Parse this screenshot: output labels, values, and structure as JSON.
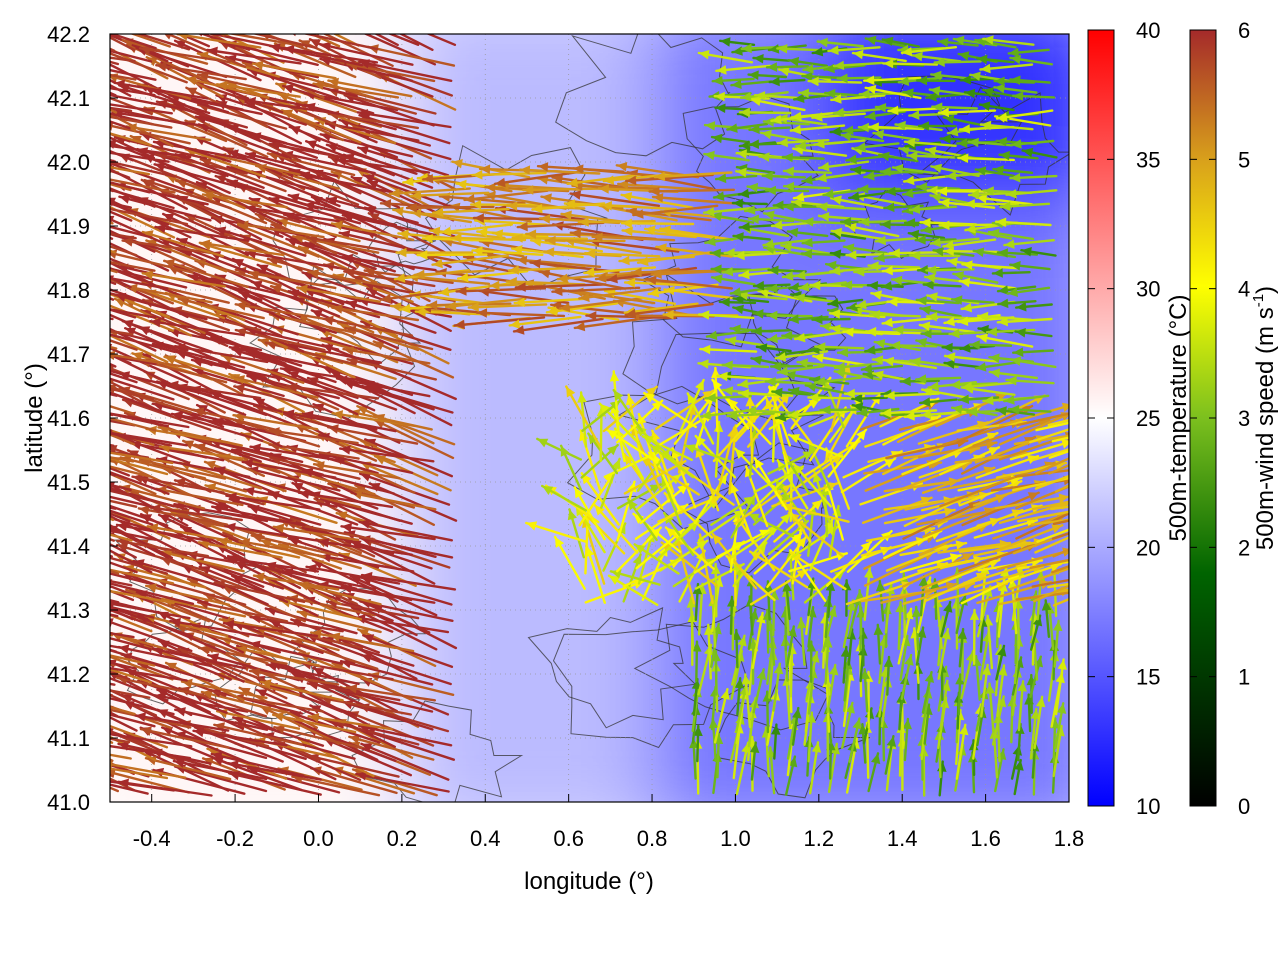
{
  "chart_data": {
    "type": "heatmap",
    "title": "",
    "xlabel": "longitude (°)",
    "ylabel": "latitude (°)",
    "xlim": [
      -0.5,
      1.8
    ],
    "ylim": [
      41.0,
      42.2
    ],
    "xticks": [
      -0.4,
      -0.2,
      0.0,
      0.2,
      0.4,
      0.6,
      0.8,
      1.0,
      1.2,
      1.4,
      1.6,
      1.8
    ],
    "xtick_labels": [
      "-0.4",
      "-0.2",
      "0.0",
      "0.2",
      "0.4",
      "0.6",
      "0.8",
      "1.0",
      "1.2",
      "1.4",
      "1.6",
      "1.8"
    ],
    "yticks": [
      41.0,
      41.1,
      41.2,
      41.3,
      41.4,
      41.5,
      41.6,
      41.7,
      41.8,
      41.9,
      42.0,
      42.1,
      42.2
    ],
    "ytick_labels": [
      "41.0",
      "41.1",
      "41.2",
      "41.3",
      "41.4",
      "41.5",
      "41.6",
      "41.7",
      "41.8",
      "41.9",
      "42.0",
      "42.1",
      "42.2"
    ],
    "grid": true,
    "fields": {
      "temperature": {
        "label": "500m-temperature (°C)",
        "range": [
          10,
          40
        ],
        "ticks": [
          "10",
          "15",
          "20",
          "25",
          "30",
          "35",
          "40"
        ],
        "colors": [
          "#0000ff",
          "#ffffff",
          "#ff0000"
        ],
        "regions": [
          {
            "name": "west",
            "lon": [
              -0.5,
              0.3
            ],
            "lat": [
              41.0,
              42.2
            ],
            "value": 25.5
          },
          {
            "name": "central",
            "lon": [
              0.3,
              0.9
            ],
            "lat": [
              41.0,
              42.2
            ],
            "value": 21
          },
          {
            "name": "east",
            "lon": [
              0.9,
              1.8
            ],
            "lat": [
              41.0,
              42.2
            ],
            "value": 17
          },
          {
            "name": "northeast",
            "lon": [
              1.3,
              1.8
            ],
            "lat": [
              42.0,
              42.2
            ],
            "value": 13
          }
        ]
      },
      "wind": {
        "label": "500m-wind speed",
        "unit_base": "(m s",
        "unit_exp": "-1",
        "unit_close": ")",
        "range": [
          0,
          6
        ],
        "ticks": [
          "0",
          "1",
          "2",
          "3",
          "4",
          "5",
          "6"
        ],
        "colors": [
          "#000000",
          "#006400",
          "#7cc01e",
          "#ffff00",
          "#d9a21b",
          "#a52a2a"
        ],
        "regimes": [
          {
            "name": "west",
            "lon": [
              -0.5,
              0.35
            ],
            "lat": [
              41.0,
              42.2
            ],
            "direction": "from east-southeast, blowing west-northwest",
            "speed": 6
          },
          {
            "name": "band-north",
            "lon": [
              0.35,
              1.1
            ],
            "lat": [
              41.75,
              42.0
            ],
            "direction": "blowing west",
            "speed": 5
          },
          {
            "name": "northeast",
            "lon": [
              1.0,
              1.8
            ],
            "lat": [
              41.6,
              42.2
            ],
            "direction": "blowing west",
            "speed": 2.5
          },
          {
            "name": "center",
            "lon": [
              0.6,
              1.4
            ],
            "lat": [
              41.3,
              41.6
            ],
            "direction": "variable, mostly west/north",
            "speed": 3.5
          },
          {
            "name": "southeast",
            "lon": [
              0.9,
              1.8
            ],
            "lat": [
              41.0,
              41.3
            ],
            "direction": "blowing north",
            "speed": 2.5
          },
          {
            "name": "east-mid",
            "lon": [
              1.3,
              1.8
            ],
            "lat": [
              41.3,
              41.6
            ],
            "direction": "blowing east-northeast",
            "speed": 4.5
          }
        ]
      }
    }
  }
}
